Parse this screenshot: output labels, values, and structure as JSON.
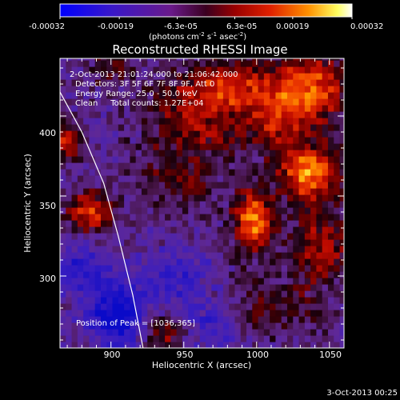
{
  "colorbar": {
    "tick_labels": [
      "-0.00032",
      "-0.00019",
      "-6.3e-05",
      "6.3e-05",
      "0.00019",
      "0.00032"
    ],
    "tick_values": [
      -0.00032,
      -0.00019,
      -6.3e-05,
      6.3e-05,
      0.00019,
      0.00032
    ],
    "range": [
      -0.00032,
      0.00032
    ],
    "unit_base": "(photons cm",
    "unit_exp1": "-2",
    "unit_mid": " s",
    "unit_exp2": "-1",
    "unit_mid2": " asec",
    "unit_exp3": "-2",
    "unit_end": ")"
  },
  "chart_data": {
    "type": "heatmap",
    "title": "Reconstructed RHESSI Image",
    "xlabel": "Heliocentric X (arcsec)",
    "ylabel": "Heliocentric Y (arcsec)",
    "xlim": [
      865,
      1060
    ],
    "ylim": [
      255,
      436
    ],
    "x_ticks": [
      900,
      950,
      1000,
      1050
    ],
    "y_ticks": [
      300,
      350,
      400
    ],
    "x_tick_labels": [
      "900",
      "950",
      "1000",
      "1050"
    ],
    "y_tick_labels": [
      "300",
      "350",
      "400"
    ],
    "colormap": "rhessi-blue-purple-red-yellow-white",
    "peak_position": [
      1036,
      365
    ],
    "limb_curve": [
      [
        865,
        415
      ],
      [
        880,
        390
      ],
      [
        895,
        358
      ],
      [
        905,
        325
      ],
      [
        915,
        288
      ],
      [
        922,
        255
      ]
    ],
    "annotations": [
      "2-Oct-2013 21:01:24.000 to 21:06:42.000",
      "Detectors: 3F 5F 6F 7F 8F 9F, Att 0",
      "Energy Range: 25.0 - 50.0 keV",
      "Clean     Total counts: 1.27E+04",
      "Position of Peak = [1036,365]"
    ],
    "blobs": [
      {
        "x": 1036,
        "y": 365,
        "sx": 14,
        "sy": 11,
        "amp": 1.0
      },
      {
        "x": 998,
        "y": 335,
        "sx": 10,
        "sy": 13,
        "amp": 0.95
      },
      {
        "x": 1015,
        "y": 405,
        "sx": 22,
        "sy": 18,
        "amp": 0.7
      },
      {
        "x": 955,
        "y": 400,
        "sx": 20,
        "sy": 18,
        "amp": 0.55
      },
      {
        "x": 980,
        "y": 420,
        "sx": 16,
        "sy": 10,
        "amp": 0.5
      },
      {
        "x": 885,
        "y": 340,
        "sx": 11,
        "sy": 9,
        "amp": 0.75
      },
      {
        "x": 870,
        "y": 385,
        "sx": 6,
        "sy": 8,
        "amp": 0.75
      },
      {
        "x": 1045,
        "y": 320,
        "sx": 14,
        "sy": 18,
        "amp": 0.55
      },
      {
        "x": 1040,
        "y": 420,
        "sx": 16,
        "sy": 14,
        "amp": 0.6
      },
      {
        "x": 945,
        "y": 360,
        "sx": 18,
        "sy": 12,
        "amp": 0.35
      },
      {
        "x": 935,
        "y": 265,
        "sx": 10,
        "sy": 8,
        "amp": 0.5
      },
      {
        "x": 1010,
        "y": 280,
        "sx": 20,
        "sy": 12,
        "amp": 0.35
      },
      {
        "x": 900,
        "y": 430,
        "sx": 12,
        "sy": 8,
        "amp": 0.3
      }
    ],
    "negative_regions": [
      {
        "x": 905,
        "y": 275,
        "sx": 14,
        "sy": 14,
        "amp": -0.8
      },
      {
        "x": 945,
        "y": 300,
        "sx": 16,
        "sy": 12,
        "amp": -0.4
      },
      {
        "x": 880,
        "y": 305,
        "sx": 12,
        "sy": 12,
        "amp": -0.45
      },
      {
        "x": 970,
        "y": 270,
        "sx": 14,
        "sy": 10,
        "amp": -0.35
      }
    ]
  },
  "footer": {
    "timestamp": "3-Oct-2013 00:25"
  }
}
